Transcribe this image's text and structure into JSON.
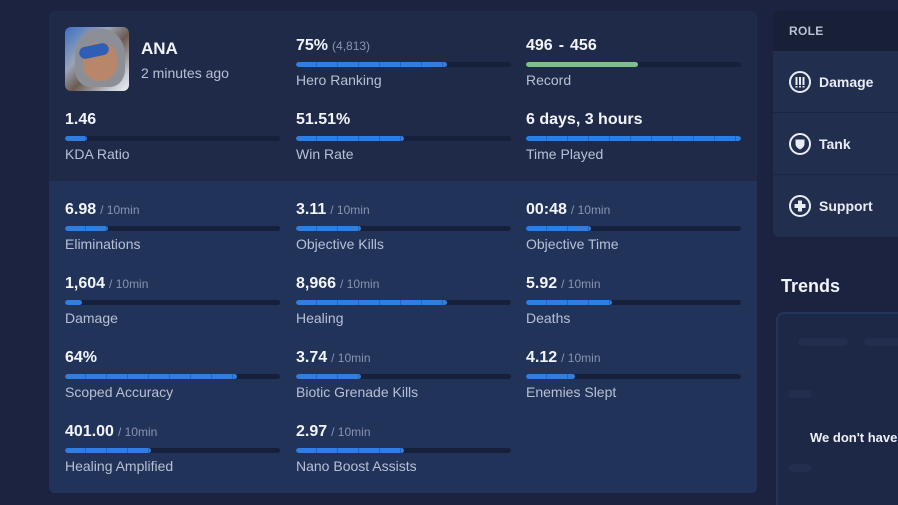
{
  "hero": {
    "name": "ANA",
    "last_played": "2 minutes ago",
    "avatar_icon": "ana-portrait"
  },
  "summary": {
    "hero_ranking": {
      "value": "75%",
      "sub": "(4,813)",
      "label": "Hero Ranking",
      "percent": 70
    },
    "record": {
      "wins": "496",
      "dash": "-",
      "losses": "456",
      "label": "Record",
      "percent": 52,
      "win_color": "#8fd19a",
      "loss_color": "#f07a7a"
    },
    "kda": {
      "value": "1.46",
      "label": "KDA Ratio",
      "percent": 10
    },
    "win_rate": {
      "value": "51.51%",
      "label": "Win Rate",
      "percent": 50
    },
    "time_played": {
      "value": "6 days, 3 hours",
      "label": "Time Played",
      "percent": 100
    }
  },
  "stats": {
    "eliminations": {
      "value": "6.98",
      "sub": "/ 10min",
      "label": "Eliminations",
      "percent": 20
    },
    "objective_kills": {
      "value": "3.11",
      "sub": "/ 10min",
      "label": "Objective Kills",
      "percent": 30
    },
    "objective_time": {
      "value": "00:48",
      "sub": "/ 10min",
      "label": "Objective Time",
      "percent": 30
    },
    "damage": {
      "value": "1,604",
      "sub": "/ 10min",
      "label": "Damage",
      "percent": 8
    },
    "healing": {
      "value": "8,966",
      "sub": "/ 10min",
      "label": "Healing",
      "percent": 70
    },
    "deaths": {
      "value": "5.92",
      "sub": "/ 10min",
      "label": "Deaths",
      "percent": 40
    },
    "scoped_accuracy": {
      "value": "64%",
      "sub": "",
      "label": "Scoped Accuracy",
      "percent": 80
    },
    "biotic_grenade_kills": {
      "value": "3.74",
      "sub": "/ 10min",
      "label": "Biotic Grenade Kills",
      "percent": 30
    },
    "enemies_slept": {
      "value": "4.12",
      "sub": "/ 10min",
      "label": "Enemies Slept",
      "percent": 23
    },
    "healing_amplified": {
      "value": "401.00",
      "sub": "/ 10min",
      "label": "Healing Amplified",
      "percent": 40
    },
    "nano_boost_assists": {
      "value": "2.97",
      "sub": "/ 10min",
      "label": "Nano Boost Assists",
      "percent": 50
    }
  },
  "roles": {
    "header": "ROLE",
    "items": [
      {
        "label": "Damage",
        "icon": "damage-role-icon"
      },
      {
        "label": "Tank",
        "icon": "tank-role-icon"
      },
      {
        "label": "Support",
        "icon": "support-role-icon"
      }
    ]
  },
  "trends": {
    "title": "Trends",
    "empty_message": "We don't have"
  },
  "colors": {
    "background": "#1b2340",
    "card": "#1f2a48",
    "card_lower": "#22335a",
    "bar_fill": "#2f7ee0",
    "bar_track": "#17203a"
  }
}
